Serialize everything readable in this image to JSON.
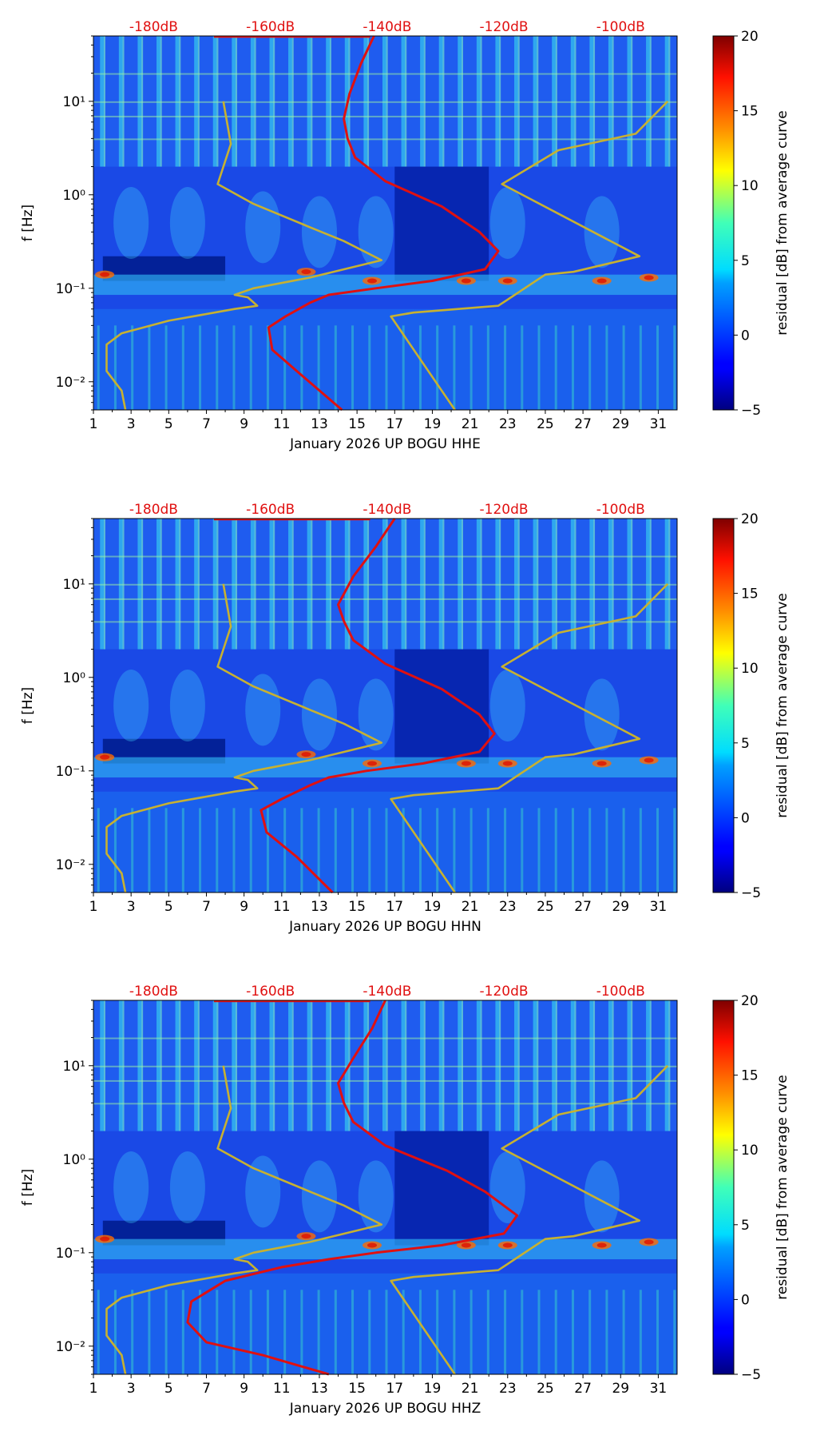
{
  "colorbar": {
    "label": "residual [dB] from average curve",
    "ticks": [
      "20",
      "15",
      "10",
      "5",
      "0",
      "−5"
    ],
    "range": [
      -5,
      20
    ]
  },
  "chart_data": [
    {
      "type": "heatmap",
      "channel": "HHE",
      "xlabel": "January 2026 UP BOGU  HHE",
      "ylabel": "f [Hz]",
      "x_ticks": [
        "1",
        "3",
        "5",
        "7",
        "9",
        "11",
        "13",
        "15",
        "17",
        "19",
        "21",
        "23",
        "25",
        "27",
        "29",
        "31"
      ],
      "y_ticks": [
        "10⁻²",
        "10⁻¹",
        "10⁰",
        "10¹"
      ],
      "top_ticks": [
        "-180dB",
        "-160dB",
        "-140dB",
        "-120dB",
        "-100dB"
      ],
      "xlim": [
        1,
        32
      ],
      "ylim_hz": [
        0.005,
        50
      ],
      "series": [
        {
          "name": "red PSD curve",
          "color": "#e01010",
          "points": [
            [
              15.9,
              50
            ],
            [
              15.2,
              25
            ],
            [
              14.6,
              12
            ],
            [
              14.3,
              6.5
            ],
            [
              14.5,
              4
            ],
            [
              14.9,
              2.5
            ],
            [
              16.5,
              1.4
            ],
            [
              19.5,
              0.75
            ],
            [
              21.5,
              0.4
            ],
            [
              22.5,
              0.25
            ],
            [
              21.8,
              0.16
            ],
            [
              19.0,
              0.12
            ],
            [
              16.0,
              0.1
            ],
            [
              13.5,
              0.085
            ],
            [
              12.5,
              0.07
            ],
            [
              11.2,
              0.05
            ],
            [
              10.3,
              0.038
            ],
            [
              10.5,
              0.022
            ],
            [
              12.0,
              0.012
            ],
            [
              14.2,
              0.005
            ]
          ]
        },
        {
          "name": "olive model curve (low)",
          "color": "#c7b131",
          "points": [
            [
              7.9,
              10
            ],
            [
              8.3,
              3.5
            ],
            [
              7.6,
              1.3
            ],
            [
              9.5,
              0.8
            ],
            [
              12.5,
              0.45
            ],
            [
              14.3,
              0.32
            ],
            [
              16.3,
              0.2
            ],
            [
              12.5,
              0.13
            ],
            [
              9.5,
              0.1
            ],
            [
              8.5,
              0.085
            ],
            [
              9.2,
              0.08
            ],
            [
              9.7,
              0.065
            ],
            [
              8.5,
              0.06
            ],
            [
              5.0,
              0.045
            ],
            [
              2.5,
              0.033
            ],
            [
              1.7,
              0.025
            ],
            [
              1.7,
              0.013
            ],
            [
              2.5,
              0.008
            ],
            [
              2.7,
              0.005
            ]
          ]
        },
        {
          "name": "olive model curve (high)",
          "color": "#c7b131",
          "points": [
            [
              31.5,
              10
            ],
            [
              29.8,
              4.5
            ],
            [
              25.7,
              3.0
            ],
            [
              22.7,
              1.3
            ],
            [
              30.0,
              0.22
            ],
            [
              26.5,
              0.15
            ],
            [
              25.0,
              0.14
            ],
            [
              22.5,
              0.065
            ],
            [
              18.0,
              0.055
            ],
            [
              16.8,
              0.05
            ],
            [
              20.2,
              0.005
            ]
          ]
        }
      ]
    },
    {
      "type": "heatmap",
      "channel": "HHN",
      "xlabel": "January 2026 UP BOGU  HHN",
      "ylabel": "f [Hz]",
      "x_ticks": [
        "1",
        "3",
        "5",
        "7",
        "9",
        "11",
        "13",
        "15",
        "17",
        "19",
        "21",
        "23",
        "25",
        "27",
        "29",
        "31"
      ],
      "y_ticks": [
        "10⁻²",
        "10⁻¹",
        "10⁰",
        "10¹"
      ],
      "top_ticks": [
        "-180dB",
        "-160dB",
        "-140dB",
        "-120dB",
        "-100dB"
      ],
      "xlim": [
        1,
        32
      ],
      "ylim_hz": [
        0.005,
        50
      ],
      "series": [
        {
          "name": "red PSD curve",
          "color": "#e01010",
          "points": [
            [
              17.0,
              50
            ],
            [
              16.0,
              25
            ],
            [
              14.8,
              12
            ],
            [
              14.0,
              6
            ],
            [
              14.3,
              4
            ],
            [
              14.8,
              2.5
            ],
            [
              16.5,
              1.4
            ],
            [
              19.5,
              0.75
            ],
            [
              21.5,
              0.4
            ],
            [
              22.3,
              0.25
            ],
            [
              21.5,
              0.16
            ],
            [
              18.5,
              0.12
            ],
            [
              15.5,
              0.1
            ],
            [
              13.5,
              0.085
            ],
            [
              12.5,
              0.07
            ],
            [
              11.0,
              0.05
            ],
            [
              9.9,
              0.038
            ],
            [
              10.2,
              0.022
            ],
            [
              11.8,
              0.012
            ],
            [
              13.7,
              0.005
            ]
          ]
        },
        {
          "name": "olive model curve (low)",
          "color": "#c7b131",
          "points": [
            [
              7.9,
              10
            ],
            [
              8.3,
              3.5
            ],
            [
              7.6,
              1.3
            ],
            [
              9.5,
              0.8
            ],
            [
              12.5,
              0.45
            ],
            [
              14.3,
              0.32
            ],
            [
              16.3,
              0.2
            ],
            [
              12.5,
              0.13
            ],
            [
              9.5,
              0.1
            ],
            [
              8.5,
              0.085
            ],
            [
              9.2,
              0.08
            ],
            [
              9.7,
              0.065
            ],
            [
              8.5,
              0.06
            ],
            [
              5.0,
              0.045
            ],
            [
              2.5,
              0.033
            ],
            [
              1.7,
              0.025
            ],
            [
              1.7,
              0.013
            ],
            [
              2.5,
              0.008
            ],
            [
              2.7,
              0.005
            ]
          ]
        },
        {
          "name": "olive model curve (high)",
          "color": "#c7b131",
          "points": [
            [
              31.5,
              10
            ],
            [
              29.8,
              4.5
            ],
            [
              25.7,
              3.0
            ],
            [
              22.7,
              1.3
            ],
            [
              30.0,
              0.22
            ],
            [
              26.5,
              0.15
            ],
            [
              25.0,
              0.14
            ],
            [
              22.5,
              0.065
            ],
            [
              18.0,
              0.055
            ],
            [
              16.8,
              0.05
            ],
            [
              20.2,
              0.005
            ]
          ]
        }
      ]
    },
    {
      "type": "heatmap",
      "channel": "HHZ",
      "xlabel": "January 2026 UP BOGU  HHZ",
      "ylabel": "f [Hz]",
      "x_ticks": [
        "1",
        "3",
        "5",
        "7",
        "9",
        "11",
        "13",
        "15",
        "17",
        "19",
        "21",
        "23",
        "25",
        "27",
        "29",
        "31"
      ],
      "y_ticks": [
        "10⁻²",
        "10⁻¹",
        "10⁰",
        "10¹"
      ],
      "top_ticks": [
        "-180dB",
        "-160dB",
        "-140dB",
        "-120dB",
        "-100dB"
      ],
      "xlim": [
        1,
        32
      ],
      "ylim_hz": [
        0.005,
        50
      ],
      "series": [
        {
          "name": "red PSD curve",
          "color": "#e01010",
          "points": [
            [
              16.5,
              50
            ],
            [
              15.8,
              25
            ],
            [
              14.8,
              12
            ],
            [
              14.0,
              6.5
            ],
            [
              14.3,
              4
            ],
            [
              14.8,
              2.5
            ],
            [
              16.5,
              1.4
            ],
            [
              19.8,
              0.75
            ],
            [
              21.8,
              0.45
            ],
            [
              23.5,
              0.25
            ],
            [
              22.8,
              0.16
            ],
            [
              19.5,
              0.12
            ],
            [
              16.0,
              0.1
            ],
            [
              13.5,
              0.085
            ],
            [
              11.0,
              0.07
            ],
            [
              8.0,
              0.05
            ],
            [
              6.2,
              0.03
            ],
            [
              6.0,
              0.018
            ],
            [
              7.0,
              0.011
            ],
            [
              10.0,
              0.008
            ],
            [
              13.5,
              0.005
            ]
          ]
        },
        {
          "name": "olive model curve (low)",
          "color": "#c7b131",
          "points": [
            [
              7.9,
              10
            ],
            [
              8.3,
              3.5
            ],
            [
              7.6,
              1.3
            ],
            [
              9.5,
              0.8
            ],
            [
              12.5,
              0.45
            ],
            [
              14.3,
              0.32
            ],
            [
              16.3,
              0.2
            ],
            [
              12.5,
              0.13
            ],
            [
              9.5,
              0.1
            ],
            [
              8.5,
              0.085
            ],
            [
              9.2,
              0.08
            ],
            [
              9.7,
              0.065
            ],
            [
              8.5,
              0.06
            ],
            [
              5.0,
              0.045
            ],
            [
              2.5,
              0.033
            ],
            [
              1.7,
              0.025
            ],
            [
              1.7,
              0.013
            ],
            [
              2.5,
              0.008
            ],
            [
              2.7,
              0.005
            ]
          ]
        },
        {
          "name": "olive model curve (high)",
          "color": "#c7b131",
          "points": [
            [
              31.5,
              10
            ],
            [
              29.8,
              4.5
            ],
            [
              25.7,
              3.0
            ],
            [
              22.7,
              1.3
            ],
            [
              30.0,
              0.22
            ],
            [
              26.5,
              0.15
            ],
            [
              25.0,
              0.14
            ],
            [
              22.5,
              0.065
            ],
            [
              18.0,
              0.055
            ],
            [
              16.8,
              0.05
            ],
            [
              20.2,
              0.005
            ]
          ]
        }
      ]
    }
  ]
}
